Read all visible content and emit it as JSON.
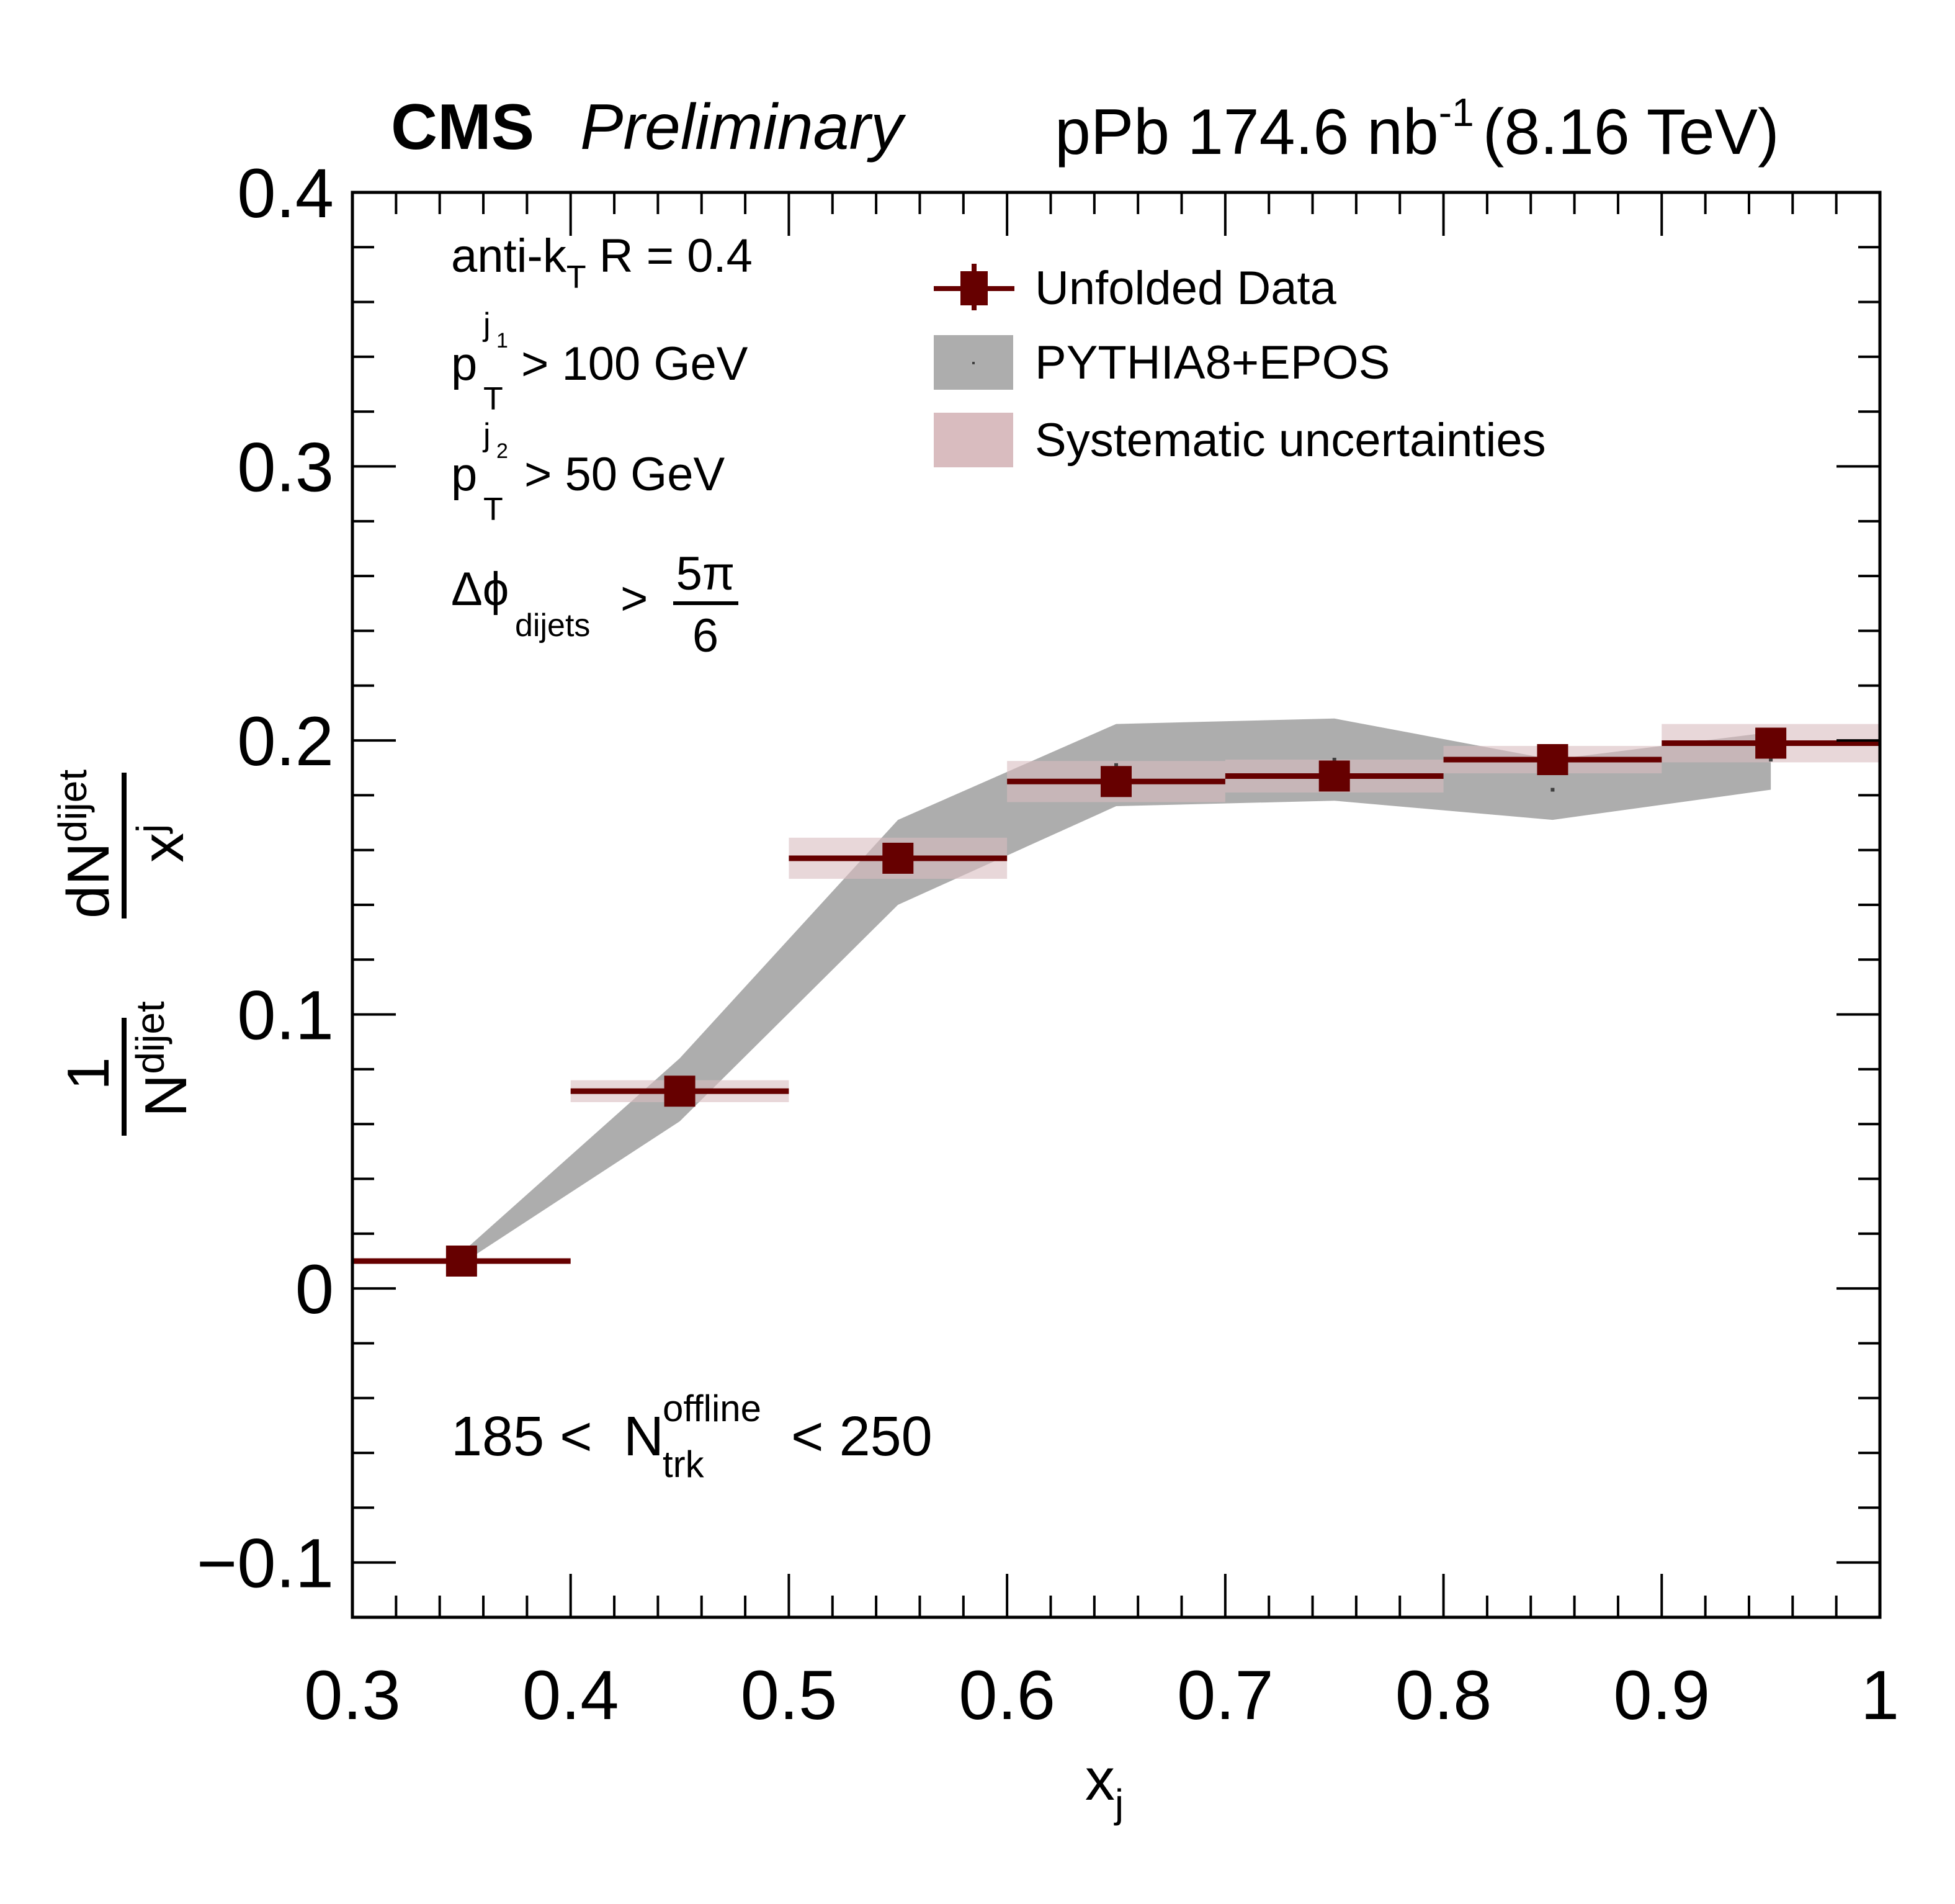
{
  "header": {
    "experiment": "CMS",
    "status": "Preliminary",
    "lumi_prefix": "pPb 174.6 nb",
    "lumi_exp": "-1",
    "energy": "(8.16 TeV)"
  },
  "annotations": {
    "algo_main": "anti-k",
    "algo_sub": "T",
    "algo_rest": " R = 0.4",
    "pt1_base": "p",
    "pt1_sub": "T",
    "pt1_sup_j": "j",
    "pt1_sup_idx": "1",
    "pt1_rest": "> 100 GeV",
    "pt2_base": "p",
    "pt2_sub": "T",
    "pt2_sup_j": "j",
    "pt2_sup_idx": "2",
    "pt2_rest": "> 50 GeV",
    "dphi_base": "Δϕ",
    "dphi_sub": "dijets",
    "dphi_gt": ">",
    "dphi_num": "5π",
    "dphi_den": "6",
    "ntrk_low": "185 <",
    "ntrk_base": "N",
    "ntrk_sup": "offline",
    "ntrk_sub": "trk",
    "ntrk_high": "< 250"
  },
  "colors": {
    "data": "#660000",
    "syst": "#D9BCBF",
    "mc_band": "#ADADAD",
    "mc_marker": "#3F3F3F",
    "axis": "#000000"
  },
  "chart_data": {
    "type": "scatter",
    "title": "",
    "xlabel": "x_j",
    "ylabel": "1/N_dijet dN_dijet/x_j",
    "xlim": [
      0.3,
      1.0
    ],
    "ylim": [
      -0.12,
      0.4
    ],
    "x_ticks": [
      "0.3",
      "0.4",
      "0.5",
      "0.6",
      "0.7",
      "0.8",
      "0.9",
      "1"
    ],
    "x_tick_values": [
      0.3,
      0.4,
      0.5,
      0.6,
      0.7,
      0.8,
      0.9,
      1.0
    ],
    "y_ticks": [
      "−0.1",
      "0",
      "0.1",
      "0.2",
      "0.3",
      "0.4"
    ],
    "y_tick_values": [
      -0.1,
      0.0,
      0.1,
      0.2,
      0.3,
      0.4
    ],
    "minor_step": 0.02,
    "grid": false,
    "legend_position": "top-center",
    "legend": [
      {
        "label": "Unfolded Data",
        "kind": "marker"
      },
      {
        "label": "PYTHIA8+EPOS",
        "kind": "band"
      },
      {
        "label": "Systematic uncertainties",
        "kind": "box"
      }
    ],
    "series": [
      {
        "name": "Unfolded Data",
        "bin_low": [
          0.3,
          0.4,
          0.5,
          0.6,
          0.7,
          0.8,
          0.9
        ],
        "bin_high": [
          0.4,
          0.5,
          0.6,
          0.7,
          0.8,
          0.9,
          1.0
        ],
        "x": [
          0.35,
          0.45,
          0.55,
          0.65,
          0.75,
          0.85,
          0.95
        ],
        "y": [
          0.01,
          0.072,
          0.157,
          0.185,
          0.187,
          0.193,
          0.199
        ],
        "syst": [
          0.001,
          0.004,
          0.0075,
          0.0075,
          0.006,
          0.005,
          0.007
        ]
      },
      {
        "name": "PYTHIA8+EPOS",
        "x": [
          0.35,
          0.45,
          0.55,
          0.65,
          0.75,
          0.85,
          0.95
        ],
        "y_low": [
          0.009,
          0.061,
          0.14,
          0.176,
          0.178,
          0.171,
          0.182
        ],
        "y_high": [
          0.013,
          0.084,
          0.171,
          0.206,
          0.208,
          0.193,
          0.203
        ],
        "y_central": [
          0.011,
          0.0725,
          0.1555,
          0.191,
          0.193,
          0.182,
          0.193
        ]
      }
    ]
  }
}
